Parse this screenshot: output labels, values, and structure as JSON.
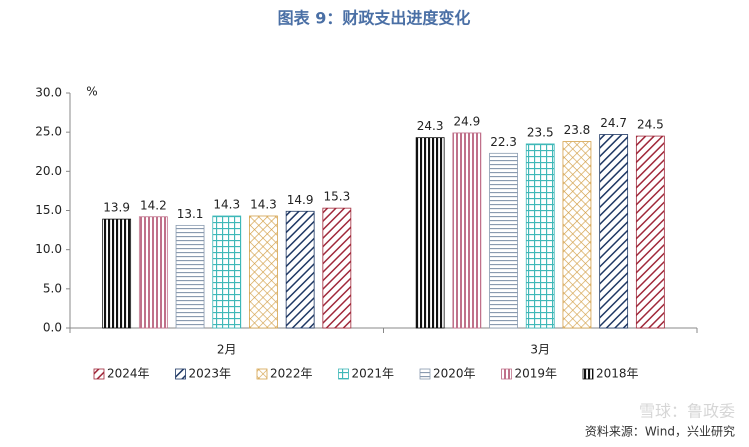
{
  "chart_data": {
    "type": "bar",
    "title": "图表 9：财政支出进度变化",
    "y_label": "%",
    "source": "资料来源：Wind，兴业研究",
    "watermark": "雪球：鲁政委",
    "categories": [
      "2月",
      "3月"
    ],
    "ylim": [
      0,
      30
    ],
    "yticks": [
      {
        "value": 0,
        "label": "0.0"
      },
      {
        "value": 5,
        "label": "5.0"
      },
      {
        "value": 10,
        "label": "10.0"
      },
      {
        "value": 15,
        "label": "15.0"
      },
      {
        "value": 20,
        "label": "20.0"
      },
      {
        "value": 25,
        "label": "25.0"
      },
      {
        "value": 30,
        "label": "30.0"
      }
    ],
    "series": [
      {
        "name": "2024年",
        "color": "#a0283a",
        "values": [
          15.3,
          24.5
        ]
      },
      {
        "name": "2023年",
        "color": "#1f3864",
        "values": [
          14.9,
          24.7
        ]
      },
      {
        "name": "2022年",
        "color": "#d4a24c",
        "values": [
          14.3,
          23.8
        ]
      },
      {
        "name": "2021年",
        "color": "#3fb8b8",
        "values": [
          14.3,
          23.5
        ]
      },
      {
        "name": "2020年",
        "color": "#8a9bb0",
        "values": [
          13.1,
          22.3
        ]
      },
      {
        "name": "2019年",
        "color": "#c0718a",
        "values": [
          14.2,
          24.9
        ]
      },
      {
        "name": "2018年",
        "color": "#111111",
        "values": [
          13.9,
          24.3
        ]
      }
    ]
  }
}
